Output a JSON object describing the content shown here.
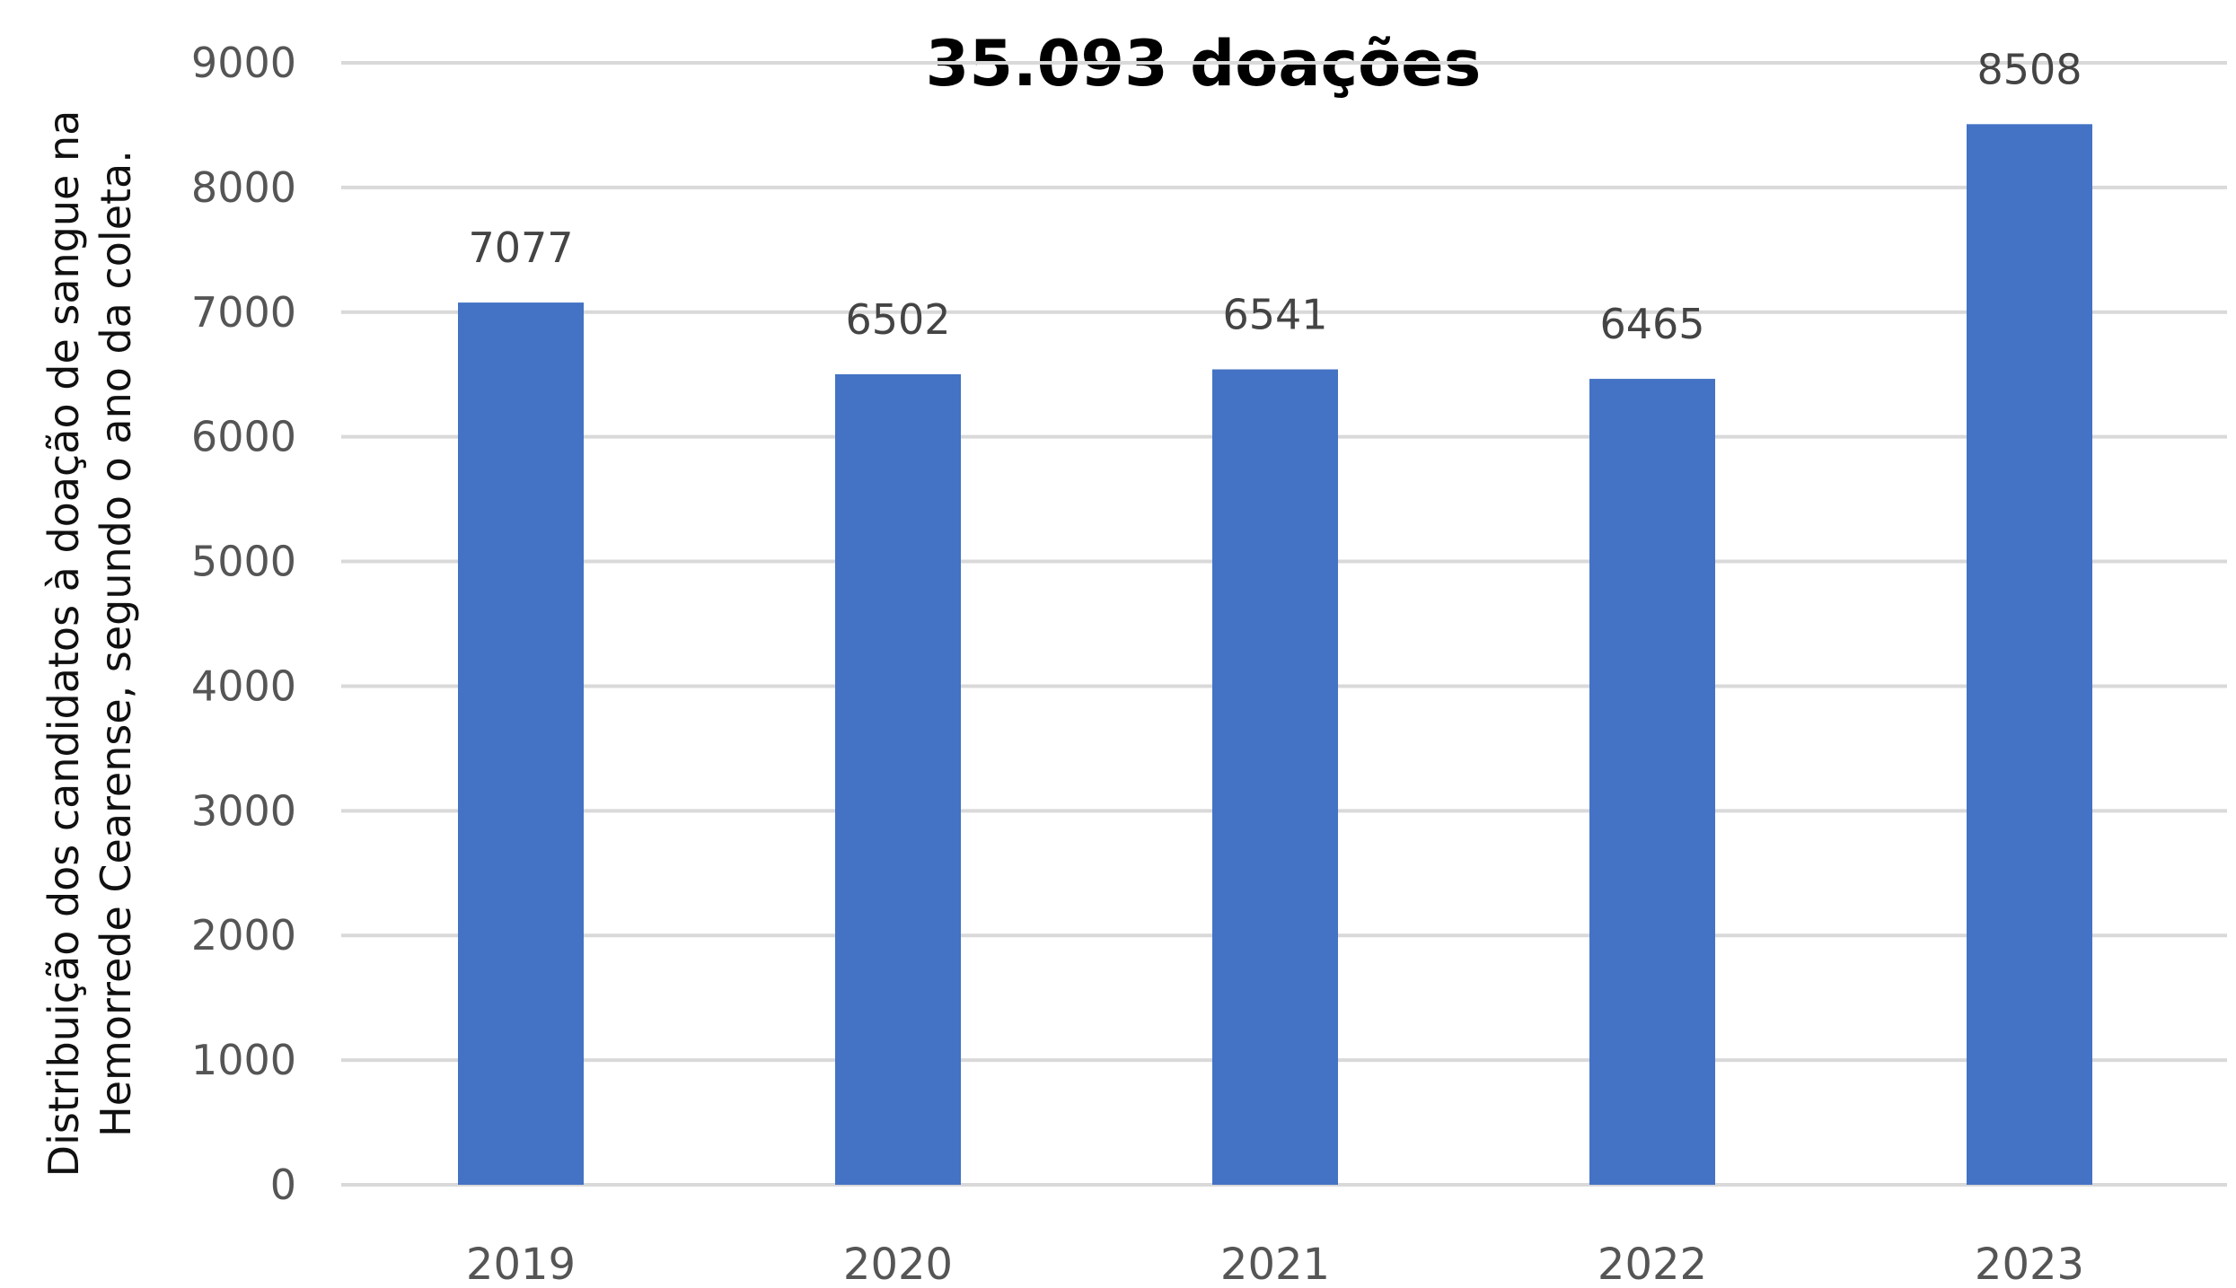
{
  "chart_data": {
    "type": "bar",
    "title": "35.093 doações",
    "ylabel": "Distribuição dos candidatos à doação de sangue na Hemorrede Cearense, segundo o ano da  coleta.",
    "xlabel": "",
    "categories": [
      "2019",
      "2020",
      "2021",
      "2022",
      "2023"
    ],
    "values": [
      7077,
      6502,
      6541,
      6465,
      8508
    ],
    "data_labels": [
      "7077",
      "6502",
      "6541",
      "6465",
      "8508"
    ],
    "ylim": [
      0,
      9000
    ],
    "yticks": [
      0,
      1000,
      2000,
      3000,
      4000,
      5000,
      6000,
      7000,
      8000,
      9000
    ],
    "ytick_labels": [
      "0",
      "1000",
      "2000",
      "3000",
      "4000",
      "5000",
      "6000",
      "7000",
      "8000",
      "9000"
    ],
    "grid": true,
    "legend": "none",
    "bar_color": "#4472c4",
    "grid_color": "#d9d9d9"
  }
}
